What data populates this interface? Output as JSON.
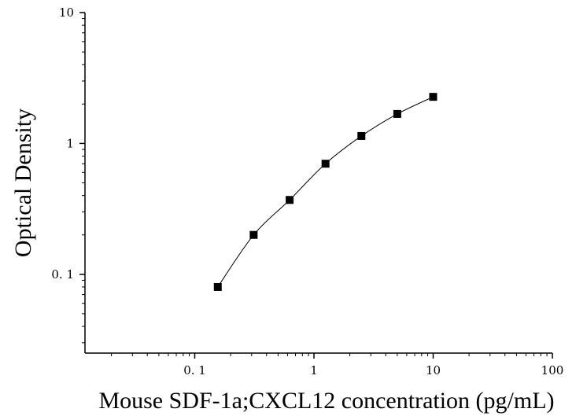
{
  "chart_data": {
    "type": "scatter",
    "title": "",
    "xlabel": "Mouse SDF-1a;CXCL12 concentration (pg/mL)",
    "ylabel": "Optical Density",
    "x_scale": "log",
    "y_scale": "log",
    "xlim": [
      0.012,
      100
    ],
    "ylim": [
      0.025,
      10
    ],
    "x_ticks": [
      {
        "value": 0.1,
        "label": "0. 1"
      },
      {
        "value": 1,
        "label": "1"
      },
      {
        "value": 10,
        "label": "10"
      },
      {
        "value": 100,
        "label": "100"
      }
    ],
    "y_ticks": [
      {
        "value": 0.1,
        "label": "0. 1"
      },
      {
        "value": 1,
        "label": "1"
      },
      {
        "value": 10,
        "label": "10"
      }
    ],
    "grid": false,
    "legend": "none",
    "fit_curve": true,
    "series": [
      {
        "marker": "square",
        "color": "#000000",
        "x": [
          0.156,
          0.312,
          0.625,
          1.25,
          2.5,
          5,
          10
        ],
        "y": [
          0.08,
          0.2,
          0.37,
          0.7,
          1.14,
          1.68,
          2.27
        ]
      }
    ]
  }
}
